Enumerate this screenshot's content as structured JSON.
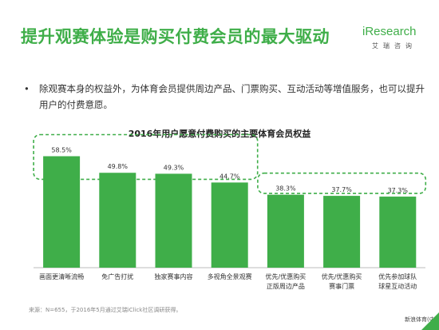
{
  "slide": {
    "title": "提升观赛体验是购买付费会员的最大驱动",
    "bullet": "除观赛本身的权益外，为体育会员提供周边产品、门票购买、互动活动等增值服务，也可以提升用户的付费意愿。",
    "source": "来源：N=655，于2016年5月通过艾瑞iClick社区调研获得。",
    "watermark": "新浪体育(中国)"
  },
  "logo": {
    "brand": "iResearch",
    "brand_cn": "艾瑞咨询"
  },
  "colors": {
    "accent": "#3fae49",
    "bar": "#3fae49"
  },
  "chart_data": {
    "type": "bar",
    "title": "2016年用户愿意付费购买的主要体育会员权益",
    "categories": [
      [
        "画面更清晰流畅"
      ],
      [
        "免广告打扰"
      ],
      [
        "独家赛事内容"
      ],
      [
        "多视角全景观赛"
      ],
      [
        "优先/优惠购买",
        "正版周边产品"
      ],
      [
        "优先/优惠购买",
        "赛事门票"
      ],
      [
        "优先参加球队",
        "球星互动活动"
      ]
    ],
    "values": [
      58.5,
      49.8,
      49.3,
      44.7,
      38.3,
      37.7,
      37.3
    ],
    "labels": [
      "58.5%",
      "49.8%",
      "49.3%",
      "44.7%",
      "38.3%",
      "37.7%",
      "37.3%"
    ],
    "ylim": [
      0,
      65
    ],
    "grid": false,
    "groups": [
      {
        "from": 0,
        "to": 3
      },
      {
        "from": 4,
        "to": 6
      }
    ]
  }
}
